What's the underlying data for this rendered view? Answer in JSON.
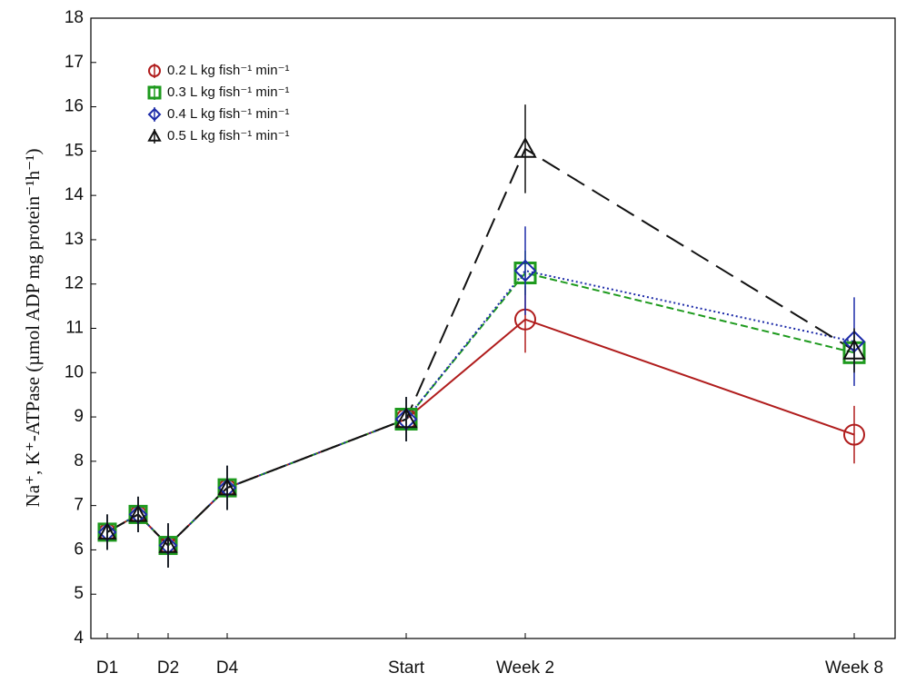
{
  "chart_data": {
    "type": "line",
    "y_label": "Na⁺, K⁺-ATPase (µmol ADP mg protein⁻¹h⁻¹)",
    "categories": [
      "D1",
      null,
      "D2",
      "D4",
      "Start",
      "Week 2",
      "Week 8"
    ],
    "ylim": [
      4,
      18
    ],
    "yticks": [
      4,
      5,
      6,
      7,
      8,
      9,
      10,
      11,
      12,
      13,
      14,
      15,
      16,
      17,
      18
    ],
    "legend": "upper left",
    "series": [
      {
        "name": "0.2 L kg fish⁻¹ min⁻¹",
        "color": "#b01c1c",
        "marker": "circle",
        "line_style": "solid",
        "values": [
          6.4,
          6.8,
          6.1,
          7.4,
          8.95,
          11.2,
          8.6
        ],
        "errors": [
          0.4,
          0.4,
          0.5,
          0.5,
          0.5,
          0.75,
          0.65
        ]
      },
      {
        "name": "0.3 L kg fish⁻¹ min⁻¹",
        "color": "#1e9a1e",
        "marker": "square",
        "line_style": "dashed",
        "values": [
          6.4,
          6.8,
          6.1,
          7.4,
          8.95,
          12.25,
          10.45
        ],
        "errors": [
          0.4,
          0.4,
          0.5,
          0.5,
          0.5,
          0.5,
          0.4
        ]
      },
      {
        "name": "0.4 L kg fish⁻¹ min⁻¹",
        "color": "#1c2aa8",
        "marker": "diamond",
        "line_style": "dotted",
        "values": [
          6.4,
          6.8,
          6.1,
          7.4,
          8.95,
          12.3,
          10.7
        ],
        "errors": [
          0.4,
          0.4,
          0.5,
          0.5,
          0.5,
          1.0,
          1.0
        ]
      },
      {
        "name": "0.5 L kg fish⁻¹ min⁻¹",
        "color": "#111111",
        "marker": "triangle",
        "line_style": "longdash",
        "values": [
          6.4,
          6.8,
          6.1,
          7.4,
          8.95,
          15.05,
          10.5
        ],
        "errors": [
          0.4,
          0.4,
          0.5,
          0.5,
          0.5,
          1.0,
          0.5
        ]
      }
    ]
  }
}
